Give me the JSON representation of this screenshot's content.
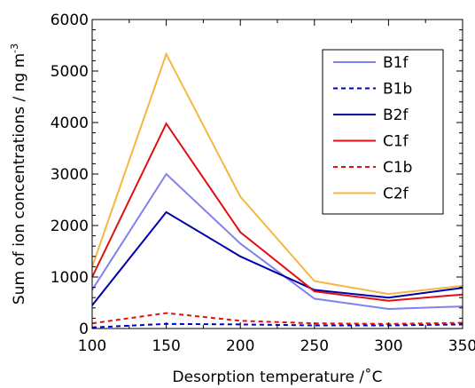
{
  "chart_data": {
    "type": "line",
    "title": "",
    "xlabel": "Desorption temperature /˚C",
    "ylabel_main": "Sum of ion concentrations / ng m",
    "ylabel_sup": "-3",
    "x": [
      100,
      150,
      200,
      250,
      300,
      350
    ],
    "xlim": [
      100,
      350
    ],
    "ylim": [
      0,
      6000
    ],
    "xticks": [
      100,
      150,
      200,
      250,
      300,
      350
    ],
    "yticks": [
      0,
      1000,
      2000,
      3000,
      4000,
      5000,
      6000
    ],
    "grid": false,
    "legend_position": "top-right",
    "series": [
      {
        "name": "B1f",
        "color": "#8080f0",
        "dash": "solid",
        "values": [
          750,
          3000,
          1650,
          580,
          380,
          430
        ]
      },
      {
        "name": "B1b",
        "color": "#0000cc",
        "dash": "dashed",
        "values": [
          20,
          90,
          80,
          60,
          60,
          80
        ]
      },
      {
        "name": "B2f",
        "color": "#0000aa",
        "dash": "solid",
        "values": [
          450,
          2260,
          1400,
          750,
          600,
          790
        ]
      },
      {
        "name": "C1f",
        "color": "#e01010",
        "dash": "solid",
        "values": [
          1000,
          3980,
          1870,
          720,
          540,
          660
        ]
      },
      {
        "name": "C1b",
        "color": "#e01010",
        "dash": "dashed",
        "values": [
          100,
          300,
          150,
          100,
          90,
          110
        ]
      },
      {
        "name": "C2f",
        "color": "#f5b642",
        "dash": "solid",
        "values": [
          1200,
          5330,
          2560,
          920,
          670,
          830
        ]
      }
    ]
  }
}
